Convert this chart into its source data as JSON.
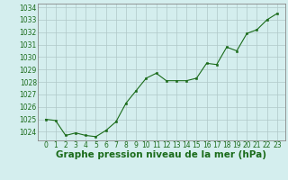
{
  "x": [
    0,
    1,
    2,
    3,
    4,
    5,
    6,
    7,
    8,
    9,
    10,
    11,
    12,
    13,
    14,
    15,
    16,
    17,
    18,
    19,
    20,
    21,
    22,
    23
  ],
  "y": [
    1025.0,
    1024.9,
    1023.7,
    1023.9,
    1023.7,
    1023.6,
    1024.1,
    1024.8,
    1026.3,
    1027.3,
    1028.3,
    1028.7,
    1028.1,
    1028.1,
    1028.1,
    1028.3,
    1029.5,
    1029.4,
    1030.8,
    1030.5,
    1031.9,
    1032.2,
    1033.0,
    1033.5
  ],
  "title": "Graphe pression niveau de la mer (hPa)",
  "ylim": [
    1023.3,
    1034.3
  ],
  "yticks": [
    1024,
    1025,
    1026,
    1027,
    1028,
    1029,
    1030,
    1031,
    1032,
    1033,
    1034
  ],
  "xticks": [
    0,
    1,
    2,
    3,
    4,
    5,
    6,
    7,
    8,
    9,
    10,
    11,
    12,
    13,
    14,
    15,
    16,
    17,
    18,
    19,
    20,
    21,
    22,
    23
  ],
  "line_color": "#1a6b1a",
  "marker_color": "#1a6b1a",
  "bg_color": "#d4eeee",
  "grid_color": "#b0c8c8",
  "title_color": "#1a6b1a",
  "title_fontsize": 7.5,
  "tick_fontsize": 5.5,
  "border_color": "#888888"
}
